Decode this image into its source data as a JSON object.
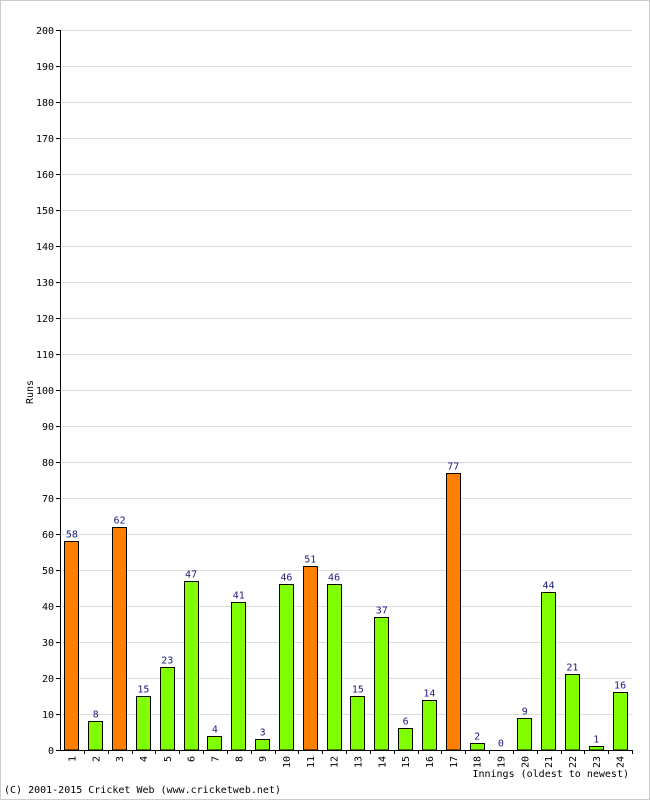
{
  "chart_data": {
    "type": "bar",
    "title": "",
    "xlabel": "Innings (oldest to newest)",
    "ylabel": "Runs",
    "ylim": [
      0,
      200
    ],
    "ytick_step": 10,
    "grid": true,
    "categories": [
      "1",
      "2",
      "3",
      "4",
      "5",
      "6",
      "7",
      "8",
      "9",
      "10",
      "11",
      "12",
      "13",
      "14",
      "15",
      "16",
      "17",
      "18",
      "19",
      "20",
      "21",
      "22",
      "23",
      "24"
    ],
    "values": [
      58,
      8,
      62,
      15,
      23,
      47,
      4,
      41,
      3,
      46,
      51,
      46,
      15,
      37,
      6,
      14,
      77,
      2,
      0,
      9,
      44,
      21,
      1,
      16
    ],
    "highlight": [
      true,
      false,
      true,
      false,
      false,
      false,
      false,
      false,
      false,
      false,
      true,
      false,
      false,
      false,
      false,
      false,
      true,
      false,
      false,
      false,
      false,
      false,
      false,
      false
    ],
    "colors": {
      "normal": "#80ff00",
      "highlight": "#ff8000",
      "grid": "#dddddd",
      "label": "#1a1a80"
    }
  },
  "footer": {
    "copyright": "(C) 2001-2015 Cricket Web (www.cricketweb.net)"
  }
}
